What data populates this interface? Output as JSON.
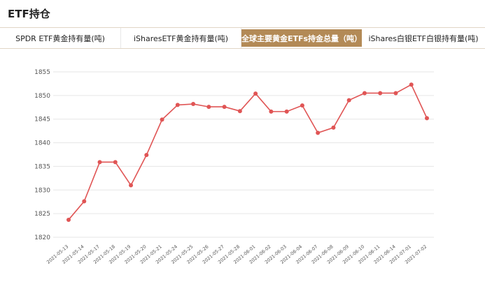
{
  "header": {
    "title": "ETF持仓"
  },
  "tabs": [
    {
      "label": "SPDR ETF黄金持有量(吨)",
      "active": false
    },
    {
      "label": "iSharesETF黄金持有量(吨)",
      "active": false
    },
    {
      "label": "全球主要黄金ETFs持金总量（吨）",
      "active": true
    },
    {
      "label": "iShares白银ETF白银持有量(吨)",
      "active": false
    }
  ],
  "colors": {
    "line": "#e05555",
    "accent": "#b38a56",
    "grid": "#e6e6e6"
  },
  "chart_data": {
    "type": "line",
    "title": "",
    "xlabel": "",
    "ylabel": "",
    "ylim": [
      1820,
      1855
    ],
    "yticks": [
      1820,
      1825,
      1830,
      1835,
      1840,
      1845,
      1850,
      1855
    ],
    "grid": true,
    "categories": [
      "2021-05-13",
      "2021-05-14",
      "2021-05-17",
      "2021-05-18",
      "2021-05-19",
      "2021-05-20",
      "2021-05-21",
      "2021-05-24",
      "2021-05-25",
      "2021-05-26",
      "2021-05-27",
      "2021-05-28",
      "2021-06-01",
      "2021-06-02",
      "2021-06-03",
      "2021-06-04",
      "2021-06-07",
      "2021-06-08",
      "2021-06-09",
      "2021-06-10",
      "2021-06-11",
      "2021-06-14",
      "2021-07-01",
      "2021-07-02"
    ],
    "series": [
      {
        "values": [
          1823.7,
          1827.6,
          1835.9,
          1835.9,
          1831.0,
          1837.4,
          1844.9,
          1848.0,
          1848.2,
          1847.6,
          1847.6,
          1846.7,
          1850.4,
          1846.6,
          1846.6,
          1847.9,
          1842.1,
          1843.2,
          1849.0,
          1850.5,
          1850.5,
          1850.5,
          1852.3,
          1845.2
        ]
      }
    ]
  }
}
